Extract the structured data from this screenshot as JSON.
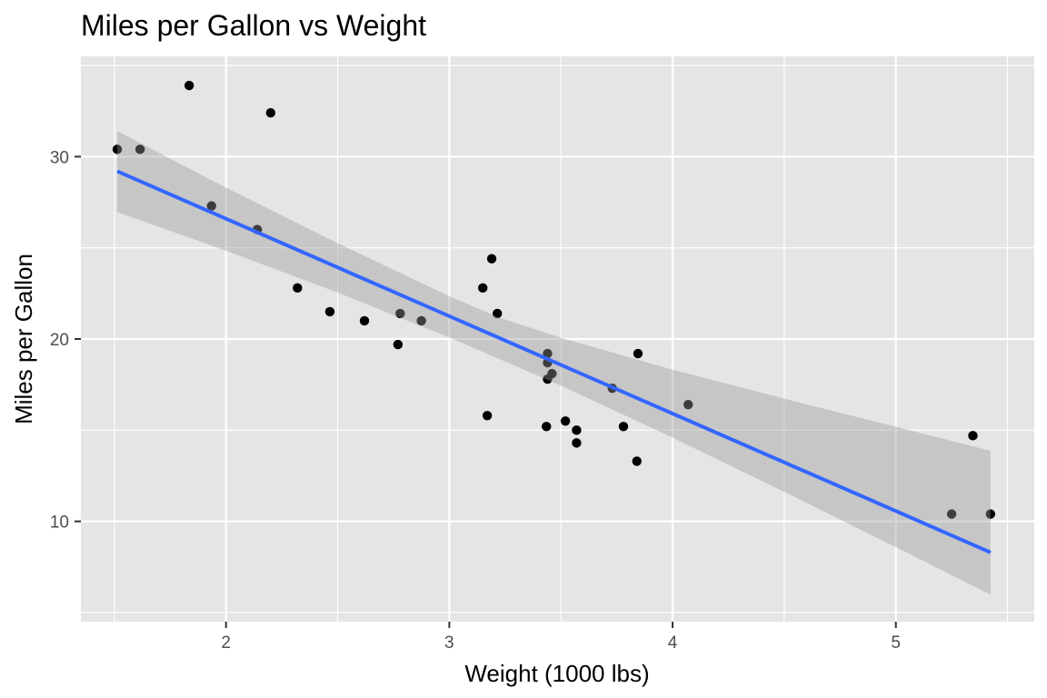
{
  "chart_data": {
    "type": "scatter",
    "title": "Miles per Gallon vs Weight",
    "xlabel": "Weight (1000 lbs)",
    "ylabel": "Miles per Gallon",
    "xlim": [
      1.35,
      5.62
    ],
    "ylim": [
      4.5,
      35.5
    ],
    "x_ticks": [
      2,
      3,
      4,
      5
    ],
    "x_tick_labels": [
      "2",
      "3",
      "4",
      "5"
    ],
    "x_minor_ticks": [
      1.5,
      2.5,
      3.5,
      4.5,
      5.5
    ],
    "y_ticks": [
      10,
      20,
      30
    ],
    "y_tick_labels": [
      "10",
      "20",
      "30"
    ],
    "y_minor_ticks": [
      5,
      15,
      25,
      35
    ],
    "grid": true,
    "legend": "none",
    "colors": {
      "panel_background": "#e5e5e5",
      "grid": "#ffffff",
      "points": "#000000",
      "fit_line": "#3366ff",
      "confidence_band": "#bdbdbd"
    },
    "points": {
      "x": [
        2.62,
        2.875,
        2.32,
        3.215,
        3.44,
        3.46,
        3.57,
        3.19,
        3.15,
        3.44,
        3.44,
        4.07,
        3.73,
        3.78,
        5.25,
        5.424,
        5.345,
        2.2,
        1.615,
        1.835,
        2.465,
        3.52,
        3.435,
        3.84,
        3.845,
        1.935,
        2.14,
        1.513,
        3.17,
        2.77,
        3.57,
        2.78
      ],
      "y": [
        21.0,
        21.0,
        22.8,
        21.4,
        18.7,
        18.1,
        14.3,
        24.4,
        22.8,
        19.2,
        17.8,
        16.4,
        17.3,
        15.2,
        10.4,
        10.4,
        14.7,
        32.4,
        30.4,
        33.9,
        21.5,
        15.5,
        15.2,
        13.3,
        19.2,
        27.3,
        26.0,
        30.4,
        15.8,
        19.7,
        15.0,
        21.4
      ]
    },
    "fit": {
      "method": "lm",
      "intercept": 37.285,
      "slope": -5.344
    },
    "confidence_band": {
      "x": [
        1.513,
        2.0,
        2.5,
        3.0,
        3.217,
        3.5,
        4.0,
        4.5,
        5.0,
        5.424
      ],
      "lower": [
        26.96,
        24.84,
        22.55,
        20.08,
        18.94,
        17.44,
        14.59,
        11.62,
        8.59,
        5.99
      ],
      "upper": [
        31.4,
        28.3,
        25.25,
        22.35,
        21.2,
        20.07,
        18.32,
        16.73,
        15.19,
        13.87
      ]
    }
  }
}
